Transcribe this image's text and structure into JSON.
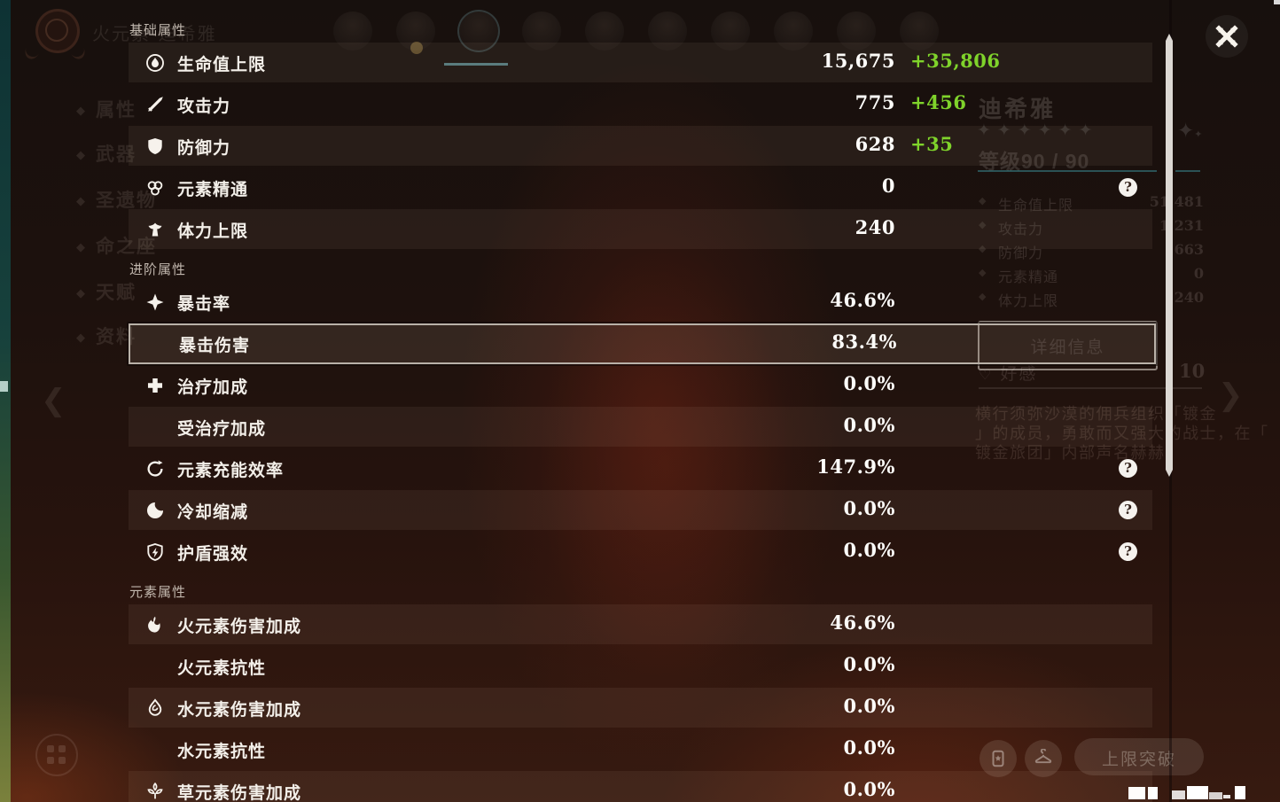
{
  "overlay": {
    "help_glyph": "?",
    "sections": [
      {
        "title": "基础属性",
        "rows": [
          {
            "icon": "hp-icon",
            "label": "生命值上限",
            "value": "15,675",
            "bonus": "+35,806"
          },
          {
            "icon": "atk-icon",
            "label": "攻击力",
            "value": "775",
            "bonus": "+456"
          },
          {
            "icon": "def-icon",
            "label": "防御力",
            "value": "628",
            "bonus": "+35"
          },
          {
            "icon": "elemental-mastery-icon",
            "label": "元素精通",
            "value": "0",
            "help": true
          },
          {
            "icon": "stamina-icon",
            "label": "体力上限",
            "value": "240"
          }
        ]
      },
      {
        "title": "进阶属性",
        "rows": [
          {
            "icon": "crit-rate-icon",
            "label": "暴击率",
            "value": "46.6%"
          },
          {
            "label": "暴击伤害",
            "value": "83.4%",
            "highlighted": true
          },
          {
            "icon": "healing-bonus-icon",
            "label": "治疗加成",
            "value": "0.0%"
          },
          {
            "label": "受治疗加成",
            "value": "0.0%"
          },
          {
            "icon": "energy-recharge-icon",
            "label": "元素充能效率",
            "value": "147.9%",
            "help": true
          },
          {
            "icon": "cooldown-icon",
            "label": "冷却缩减",
            "value": "0.0%",
            "help": true
          },
          {
            "icon": "shield-strength-icon",
            "label": "护盾强效",
            "value": "0.0%",
            "help": true
          }
        ]
      },
      {
        "title": "元素属性",
        "rows": [
          {
            "icon": "pyro-icon",
            "label": "火元素伤害加成",
            "value": "46.6%"
          },
          {
            "label": "火元素抗性",
            "value": "0.0%"
          },
          {
            "icon": "hydro-icon",
            "label": "水元素伤害加成",
            "value": "0.0%"
          },
          {
            "label": "水元素抗性",
            "value": "0.0%"
          },
          {
            "icon": "dendro-icon",
            "label": "草元素伤害加成",
            "value": "0.0%"
          }
        ]
      }
    ]
  },
  "background": {
    "element_title": "火元素·迪希雅",
    "sidebar_items": [
      "属性",
      "武器",
      "圣遗物",
      "命之座",
      "天赋",
      "资料"
    ],
    "character": {
      "name": "迪希雅",
      "stars": "✦✦✦✦✦✦",
      "level_label": "等级90 / 90"
    },
    "stats": [
      {
        "label": "生命值上限",
        "value": "51,481"
      },
      {
        "label": "攻击力",
        "value": "1,231"
      },
      {
        "label": "防御力",
        "value": "663"
      },
      {
        "label": "元素精通",
        "value": "0"
      },
      {
        "label": "体力上限",
        "value": "240"
      }
    ],
    "details_button": "详细信息",
    "friendship": {
      "label": "好感",
      "value": "10"
    },
    "description_lines": [
      "横行须弥沙漠的佣兵组织「镀金",
      "」的成员，勇敢而又强大的战士，在「",
      "镀金旅团」内部声名赫赫"
    ],
    "ascend_button": "上限突破"
  },
  "colors": {
    "bonus_green": "#7fd32b",
    "teal_accent": "#40a4ae",
    "highlight_border": "#b9b1a8"
  }
}
